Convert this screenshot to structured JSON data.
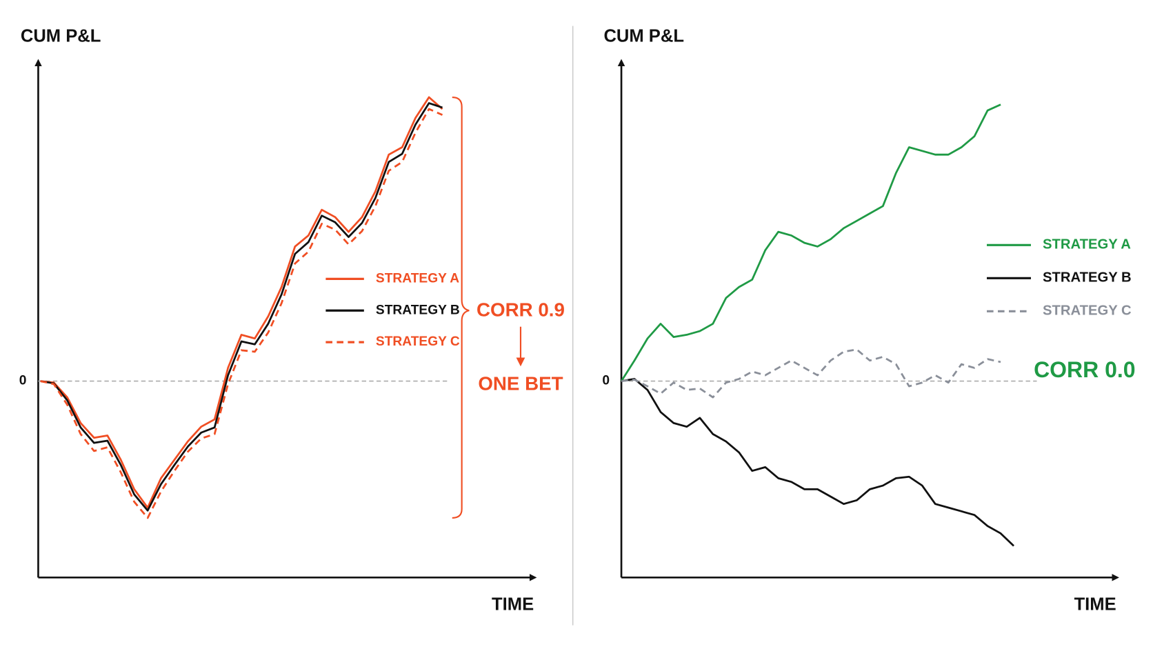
{
  "chart_data": [
    {
      "type": "line",
      "y_label": "CUM P&L",
      "x_label": "TIME",
      "x": [
        0,
        1,
        2,
        3,
        4,
        5,
        6,
        7,
        8,
        9,
        10,
        11,
        12,
        13,
        14,
        15,
        16,
        17,
        18,
        19,
        20,
        21,
        22,
        23,
        24,
        25,
        26,
        27,
        28,
        29,
        30
      ],
      "xlim": [
        0,
        36.5
      ],
      "ylim": [
        -26.7,
        43.3
      ],
      "yticks": [
        0
      ],
      "grid": true,
      "legend": "right",
      "series": [
        {
          "name": "STRATEGY A",
          "color": "#f04e23",
          "dashed": false,
          "values": [
            0,
            -0.2,
            -2.2,
            -5.7,
            -7.7,
            -7.4,
            -10.7,
            -14.7,
            -17.2,
            -13.2,
            -10.7,
            -8.2,
            -6.2,
            -5.2,
            1.8,
            6.3,
            5.8,
            8.8,
            12.8,
            18.3,
            19.8,
            23.3,
            22.3,
            20.3,
            22.3,
            25.8,
            30.8,
            31.8,
            35.8,
            38.6,
            37.0
          ]
        },
        {
          "name": "STRATEGY B",
          "color": "#111111",
          "dashed": false,
          "values": [
            0,
            -0.3,
            -2.6,
            -6.3,
            -8.4,
            -8.1,
            -11.4,
            -15.4,
            -17.6,
            -14.0,
            -11.4,
            -8.9,
            -7.0,
            -6.3,
            0.8,
            5.4,
            5.0,
            7.8,
            11.8,
            17.3,
            18.9,
            22.5,
            21.6,
            19.6,
            21.5,
            24.9,
            29.8,
            30.9,
            34.9,
            37.8,
            37.2
          ]
        },
        {
          "name": "STRATEGY C",
          "color": "#f04e23",
          "dashed": true,
          "values": [
            0,
            -0.4,
            -3.2,
            -7.2,
            -9.5,
            -9.0,
            -12.4,
            -16.4,
            -18.6,
            -15.0,
            -12.2,
            -9.6,
            -7.8,
            -7.2,
            -0.4,
            4.2,
            4.0,
            6.6,
            10.6,
            16.0,
            17.6,
            21.4,
            20.6,
            18.6,
            20.4,
            23.8,
            28.6,
            29.8,
            33.8,
            37.0,
            36.2
          ]
        }
      ],
      "annotations": [
        {
          "text": "CORR 0.9",
          "color": "#f04e23"
        },
        {
          "text": "ONE BET",
          "color": "#f04e23"
        }
      ]
    },
    {
      "type": "line",
      "y_label": "CUM P&L",
      "x_label": "TIME",
      "x": [
        0,
        1,
        2,
        3,
        4,
        5,
        6,
        7,
        8,
        9,
        10,
        11,
        12,
        13,
        14,
        15,
        16,
        17,
        18,
        19,
        20,
        21,
        22,
        23,
        24,
        25,
        26,
        27,
        28,
        29,
        30
      ],
      "xlim": [
        0,
        37.5
      ],
      "ylim": [
        -26.7,
        43.3
      ],
      "yticks": [
        0
      ],
      "grid": true,
      "legend": "right",
      "series": [
        {
          "name": "STRATEGY A",
          "color": "#1f9a45",
          "dashed": false,
          "values": [
            0,
            2.8,
            5.8,
            7.8,
            6.0,
            6.3,
            6.8,
            7.8,
            11.3,
            12.8,
            13.8,
            17.8,
            20.3,
            19.8,
            18.8,
            18.3,
            19.3,
            20.8,
            21.8,
            22.8,
            23.8,
            28.3,
            31.8,
            31.3,
            30.8,
            30.8,
            31.8,
            33.3,
            36.8,
            37.6,
            null
          ]
        },
        {
          "name": "STRATEGY B",
          "color": "#111111",
          "dashed": false,
          "values": [
            0,
            0.3,
            -1.2,
            -4.2,
            -5.7,
            -6.2,
            -5.0,
            -7.2,
            -8.2,
            -9.7,
            -12.2,
            -11.7,
            -13.2,
            -13.7,
            -14.7,
            -14.7,
            -15.7,
            -16.7,
            -16.2,
            -14.7,
            -14.2,
            -13.2,
            -13.0,
            -14.2,
            -16.7,
            -17.2,
            -17.7,
            -18.2,
            -19.7,
            -20.7,
            -22.4
          ]
        },
        {
          "name": "STRATEGY C",
          "color": "#8a8f99",
          "dashed": true,
          "values": [
            0,
            0.2,
            -0.7,
            -1.7,
            -0.2,
            -1.2,
            -1.0,
            -2.2,
            -0.2,
            0.3,
            1.3,
            0.8,
            1.8,
            2.8,
            1.8,
            0.8,
            2.8,
            4.0,
            4.3,
            2.8,
            3.3,
            2.3,
            -0.7,
            -0.2,
            0.8,
            -0.2,
            2.3,
            1.8,
            3.0,
            2.6,
            null
          ]
        }
      ],
      "annotations": [
        {
          "text": "CORR 0.0",
          "color": "#1f9a45"
        }
      ]
    }
  ]
}
